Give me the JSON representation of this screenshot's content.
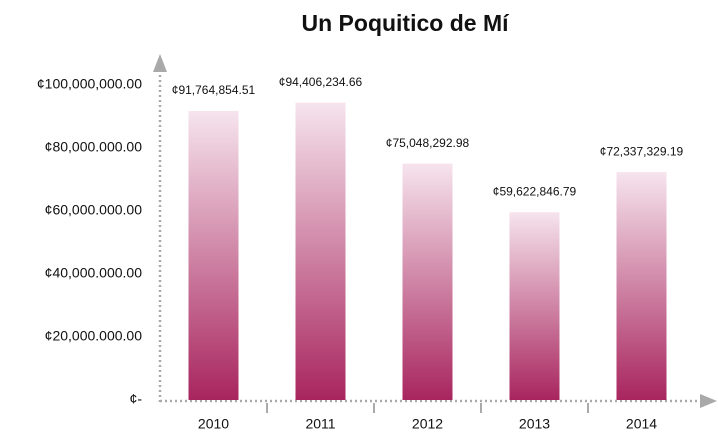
{
  "chart_data": {
    "type": "bar",
    "title": "Un Poquitico de Mí",
    "categories": [
      "2010",
      "2011",
      "2012",
      "2013",
      "2014"
    ],
    "values": [
      91764854.51,
      94406234.66,
      75048292.98,
      59622846.79,
      72337329.19
    ],
    "value_labels": [
      "¢91,764,854.51",
      "¢94,406,234.66",
      "¢75,048,292.98",
      "¢59,622,846.79",
      "¢72,337,329.19"
    ],
    "color": [
      "#f6e4ed",
      "#a8255e"
    ],
    "ylim": [
      0,
      100000000
    ],
    "yticks": [
      {
        "value": 0,
        "label": "¢-"
      },
      {
        "value": 20000000,
        "label": "¢20,000.000.00"
      },
      {
        "value": 40000000,
        "label": "¢40,000.000.00"
      },
      {
        "value": 60000000,
        "label": "¢60,000.000.00"
      },
      {
        "value": 80000000,
        "label": "¢80,000.000.00"
      },
      {
        "value": 100000000,
        "label": "¢100,000,000.00"
      }
    ],
    "grid": false
  }
}
